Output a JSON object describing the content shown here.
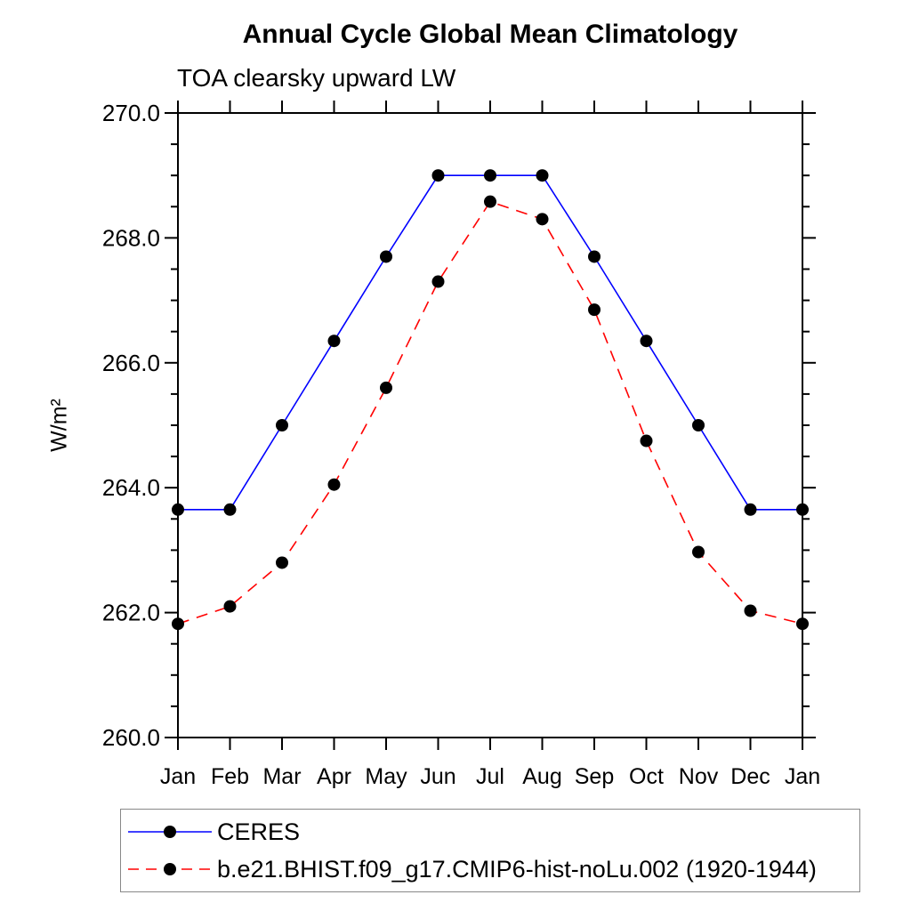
{
  "chart_data": {
    "type": "line",
    "title": "Annual Cycle Global Mean Climatology",
    "subtitle": "TOA clearsky upward LW",
    "ylabel": "W/m²",
    "categories": [
      "Jan",
      "Feb",
      "Mar",
      "Apr",
      "May",
      "Jun",
      "Jul",
      "Aug",
      "Sep",
      "Oct",
      "Nov",
      "Dec",
      "Jan"
    ],
    "ylim": [
      260.0,
      270.0
    ],
    "ytick_major_values": [
      260.0,
      262.0,
      264.0,
      266.0,
      268.0,
      270.0
    ],
    "ytick_major_labels": [
      "260.0",
      "262.0",
      "264.0",
      "266.0",
      "268.0",
      "270.0"
    ],
    "ytick_minor_step": 0.5,
    "grid": false,
    "legend_position": "bottom",
    "axis_color": "#000000",
    "marker_shape": "circle",
    "series": [
      {
        "name": "CERES",
        "color": "#0000ff",
        "style": "solid",
        "marker_color": "#000000",
        "values": [
          263.65,
          263.65,
          265.0,
          266.35,
          267.7,
          269.0,
          269.0,
          269.0,
          267.7,
          266.35,
          265.0,
          263.65,
          263.65
        ]
      },
      {
        "name": "b.e21.BHIST.f09_g17.CMIP6-hist-noLu.002 (1920-1944)",
        "color": "#ff0000",
        "style": "dashed",
        "marker_color": "#000000",
        "values": [
          261.82,
          262.1,
          262.8,
          264.05,
          265.6,
          267.3,
          268.58,
          268.3,
          266.85,
          264.75,
          262.97,
          262.03,
          261.82
        ]
      }
    ]
  }
}
